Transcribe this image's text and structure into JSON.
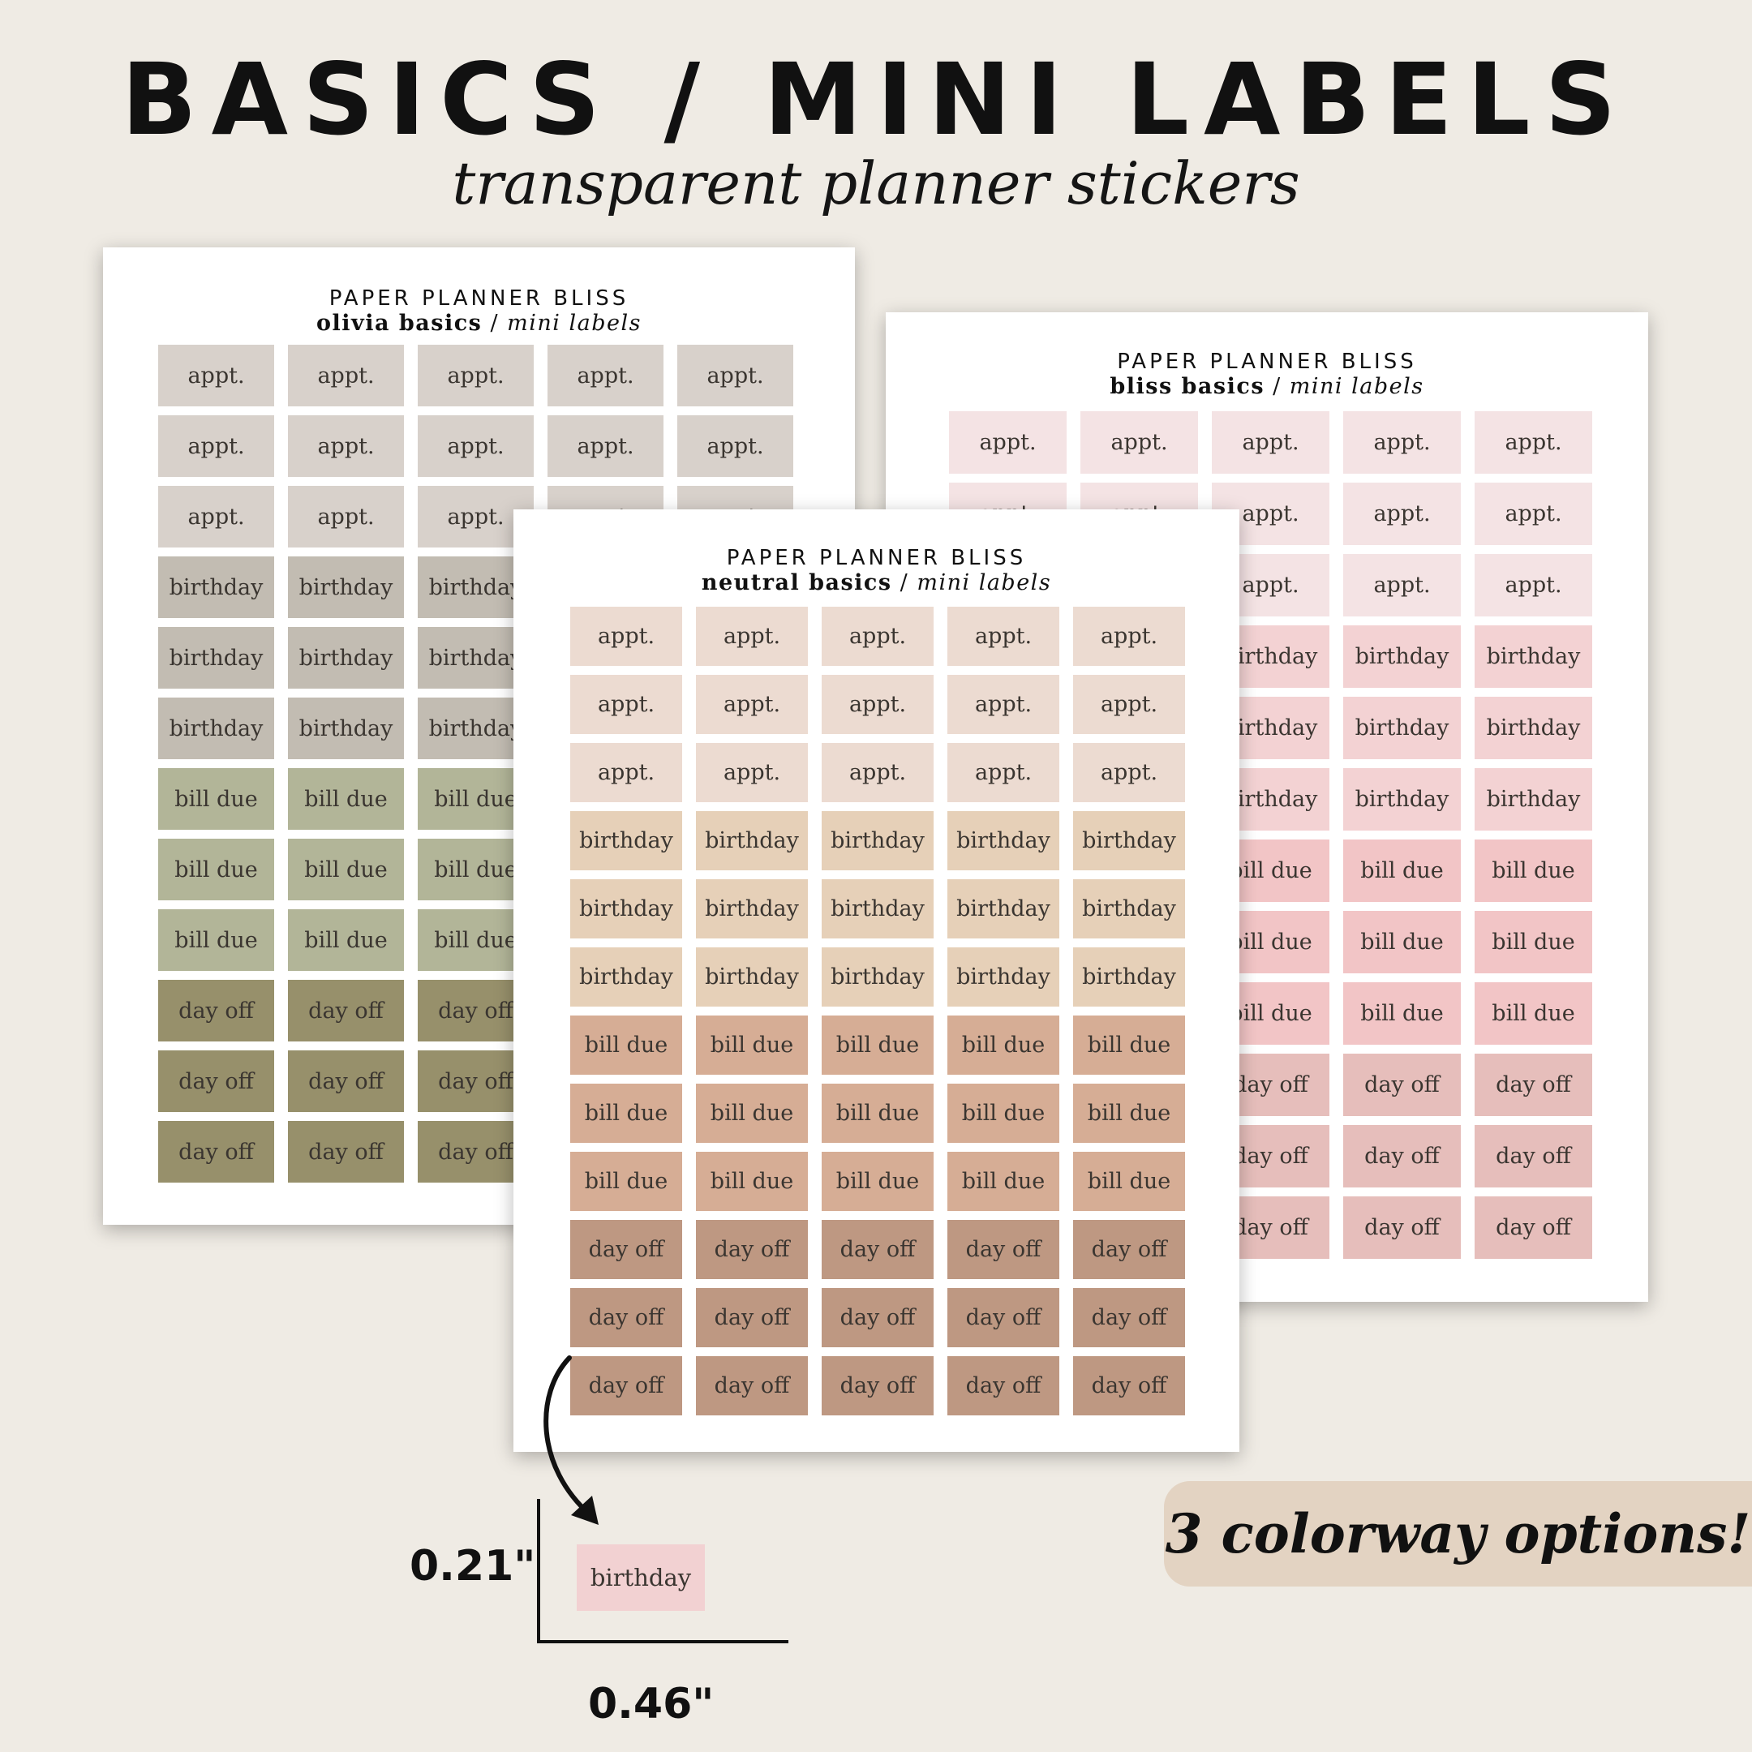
{
  "header": {
    "title": "BASICS / MINI LABELS",
    "subtitle": "transparent planner stickers"
  },
  "sheets": {
    "olivia": {
      "brand": "PAPER PLANNER BLISS",
      "name": "olivia basics",
      "sep": " / ",
      "kind": "mini labels",
      "rows": [
        {
          "text": "appt.",
          "color": "#d8d1cb"
        },
        {
          "text": "appt.",
          "color": "#d8d1cb"
        },
        {
          "text": "appt.",
          "color": "#d8d1cb"
        },
        {
          "text": "birthday",
          "color": "#c2bcb2"
        },
        {
          "text": "birthday",
          "color": "#c2bcb2"
        },
        {
          "text": "birthday",
          "color": "#c2bcb2"
        },
        {
          "text": "bill due",
          "color": "#b2b598"
        },
        {
          "text": "bill due",
          "color": "#b2b598"
        },
        {
          "text": "bill due",
          "color": "#b2b598"
        },
        {
          "text": "day off",
          "color": "#97906b"
        },
        {
          "text": "day off",
          "color": "#97906b"
        },
        {
          "text": "day off",
          "color": "#97906b"
        }
      ]
    },
    "bliss": {
      "brand": "PAPER PLANNER BLISS",
      "name": "bliss basics",
      "sep": " / ",
      "kind": "mini labels",
      "rows": [
        {
          "text": "appt.",
          "color": "#f4e3e4"
        },
        {
          "text": "appt.",
          "color": "#f4e3e4"
        },
        {
          "text": "appt.",
          "color": "#f4e3e4"
        },
        {
          "text": "birthday",
          "color": "#f3d2d3"
        },
        {
          "text": "birthday",
          "color": "#f3d2d3"
        },
        {
          "text": "birthday",
          "color": "#f3d2d3"
        },
        {
          "text": "bill due",
          "color": "#f2c5c6"
        },
        {
          "text": "bill due",
          "color": "#f2c5c6"
        },
        {
          "text": "bill due",
          "color": "#f2c5c6"
        },
        {
          "text": "day off",
          "color": "#e6bebb"
        },
        {
          "text": "day off",
          "color": "#e6bebb"
        },
        {
          "text": "day off",
          "color": "#e6bebb"
        }
      ]
    },
    "neutral": {
      "brand": "PAPER PLANNER BLISS",
      "name": "neutral basics",
      "sep": " / ",
      "kind": "mini labels",
      "rows": [
        {
          "text": "appt.",
          "color": "#ecdbd1"
        },
        {
          "text": "appt.",
          "color": "#ecdbd1"
        },
        {
          "text": "appt.",
          "color": "#ecdbd1"
        },
        {
          "text": "birthday",
          "color": "#e6d0b8"
        },
        {
          "text": "birthday",
          "color": "#e6d0b8"
        },
        {
          "text": "birthday",
          "color": "#e6d0b8"
        },
        {
          "text": "bill due",
          "color": "#d6ad95"
        },
        {
          "text": "bill due",
          "color": "#d6ad95"
        },
        {
          "text": "bill due",
          "color": "#d6ad95"
        },
        {
          "text": "day off",
          "color": "#be9882"
        },
        {
          "text": "day off",
          "color": "#be9882"
        },
        {
          "text": "day off",
          "color": "#be9882"
        }
      ]
    }
  },
  "dimensions": {
    "sample_label": "birthday",
    "sample_color": "#f2d1d2",
    "height": "0.21\"",
    "width": "0.46\""
  },
  "badge": {
    "text": "3 colorway options!",
    "color": "#e3d3c2"
  }
}
